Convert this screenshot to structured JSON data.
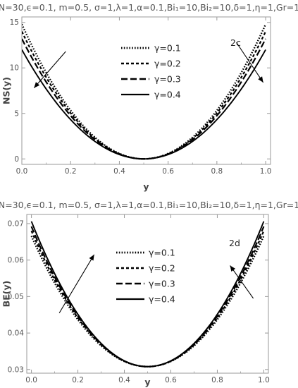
{
  "chart_data": [
    {
      "type": "line",
      "id": "c",
      "params": "{N=30,ϵ=0.1, m=0.5, σ=1,λ=1,α=0.1,Bi₁=10,Bi₂=10,δ=1,η=1,Gr=1}",
      "tag": "2c",
      "xlabel": "y",
      "ylabel": "NS(y)",
      "xlim": [
        0,
        1.02
      ],
      "ylim": [
        -0.6,
        15.6
      ],
      "xticks": [
        0,
        0.2,
        0.4,
        0.6,
        0.8,
        1
      ],
      "xtick_labels": [
        "0.0",
        "0.2",
        "0.4",
        "0.6",
        "0.8",
        "1.0"
      ],
      "yticks": [
        0,
        5,
        10,
        15
      ],
      "ytick_labels": [
        "0",
        "5",
        "10",
        "15"
      ],
      "vertex": 0.5,
      "series": [
        {
          "name": "γ=0.1",
          "style": "dotted",
          "x": [
            0,
            0.1,
            0.2,
            0.3,
            0.4,
            0.5,
            0.6,
            0.7,
            0.8,
            0.9,
            1
          ],
          "y": [
            14.8,
            9.5,
            5.3,
            2.35,
            0.6,
            0,
            0.6,
            2.35,
            5.3,
            9.5,
            14.8
          ]
        },
        {
          "name": "γ=0.2",
          "style": "short-dash",
          "x": [
            0,
            0.1,
            0.2,
            0.3,
            0.4,
            0.5,
            0.6,
            0.7,
            0.8,
            0.9,
            1
          ],
          "y": [
            14.0,
            9.0,
            5.0,
            2.25,
            0.56,
            0,
            0.56,
            2.25,
            5.0,
            9.0,
            14.0
          ]
        },
        {
          "name": "γ=0.3",
          "style": "long-dash",
          "x": [
            0,
            0.1,
            0.2,
            0.3,
            0.4,
            0.5,
            0.6,
            0.7,
            0.8,
            0.9,
            1
          ],
          "y": [
            13.2,
            8.45,
            4.75,
            2.1,
            0.53,
            0,
            0.53,
            2.1,
            4.75,
            8.45,
            13.2
          ]
        },
        {
          "name": "γ=0.4",
          "style": "solid",
          "x": [
            0,
            0.1,
            0.2,
            0.3,
            0.4,
            0.5,
            0.6,
            0.7,
            0.8,
            0.9,
            1
          ],
          "y": [
            12.0,
            7.7,
            4.3,
            1.9,
            0.48,
            0,
            0.48,
            1.9,
            4.3,
            7.7,
            12.0
          ]
        }
      ],
      "arrows": [
        {
          "from": [
            0.18,
            11.8
          ],
          "to": [
            0.05,
            7.8
          ]
        },
        {
          "from": [
            0.88,
            12.8
          ],
          "to": [
            0.99,
            8.4
          ]
        }
      ],
      "grid": false,
      "legend": "top-center"
    },
    {
      "type": "line",
      "id": "d",
      "params": "{N=30,ϵ=0.1, m=0.5, σ=1,λ=1,α=0.1,Bi₁=10,Bi₂=10,δ=1,η=1,Gr=1}",
      "tag": "2d",
      "xlabel": "y",
      "ylabel": "BE(y)",
      "xlim": [
        -0.02,
        1.02
      ],
      "ylim": [
        0.029,
        0.0725
      ],
      "xticks": [
        0,
        0.2,
        0.4,
        0.6,
        0.8,
        1
      ],
      "xtick_labels": [
        "0.0",
        "0.2",
        "0.4",
        "0.6",
        "0.8",
        "1.0"
      ],
      "yticks": [
        0.03,
        0.04,
        0.05,
        0.06,
        0.07
      ],
      "ytick_labels": [
        "0.03",
        "0.04",
        "0.05",
        "0.06",
        "0.07"
      ],
      "vertex": 0.5,
      "series": [
        {
          "name": "γ=0.1",
          "style": "dotted",
          "x": [
            0,
            0.1,
            0.2,
            0.3,
            0.4,
            0.5,
            0.6,
            0.7,
            0.8,
            0.9,
            1
          ],
          "y": [
            0.0666,
            0.0537,
            0.0437,
            0.0365,
            0.0322,
            0.0308,
            0.0322,
            0.0365,
            0.0437,
            0.0537,
            0.0666
          ]
        },
        {
          "name": "γ=0.2",
          "style": "short-dash",
          "x": [
            0,
            0.1,
            0.2,
            0.3,
            0.4,
            0.5,
            0.6,
            0.7,
            0.8,
            0.9,
            1
          ],
          "y": [
            0.068,
            0.0546,
            0.0442,
            0.0368,
            0.0323,
            0.0308,
            0.0323,
            0.0368,
            0.0442,
            0.0546,
            0.068
          ]
        },
        {
          "name": "γ=0.3",
          "style": "long-dash",
          "x": [
            0,
            0.1,
            0.2,
            0.3,
            0.4,
            0.5,
            0.6,
            0.7,
            0.8,
            0.9,
            1
          ],
          "y": [
            0.0692,
            0.0554,
            0.0447,
            0.037,
            0.0324,
            0.0308,
            0.0324,
            0.037,
            0.0447,
            0.0554,
            0.0692
          ]
        },
        {
          "name": "γ=0.4",
          "style": "solid",
          "x": [
            0,
            0.1,
            0.2,
            0.3,
            0.4,
            0.5,
            0.6,
            0.7,
            0.8,
            0.9,
            1
          ],
          "y": [
            0.0706,
            0.0563,
            0.0452,
            0.0373,
            0.0325,
            0.0308,
            0.0325,
            0.0373,
            0.0452,
            0.0563,
            0.0706
          ]
        }
      ],
      "arrows": [
        {
          "from": [
            0.12,
            0.0455
          ],
          "to": [
            0.27,
            0.0615
          ]
        },
        {
          "from": [
            0.955,
            0.0495
          ],
          "to": [
            0.855,
            0.0585
          ]
        }
      ],
      "grid": false,
      "legend": "top-center"
    }
  ]
}
